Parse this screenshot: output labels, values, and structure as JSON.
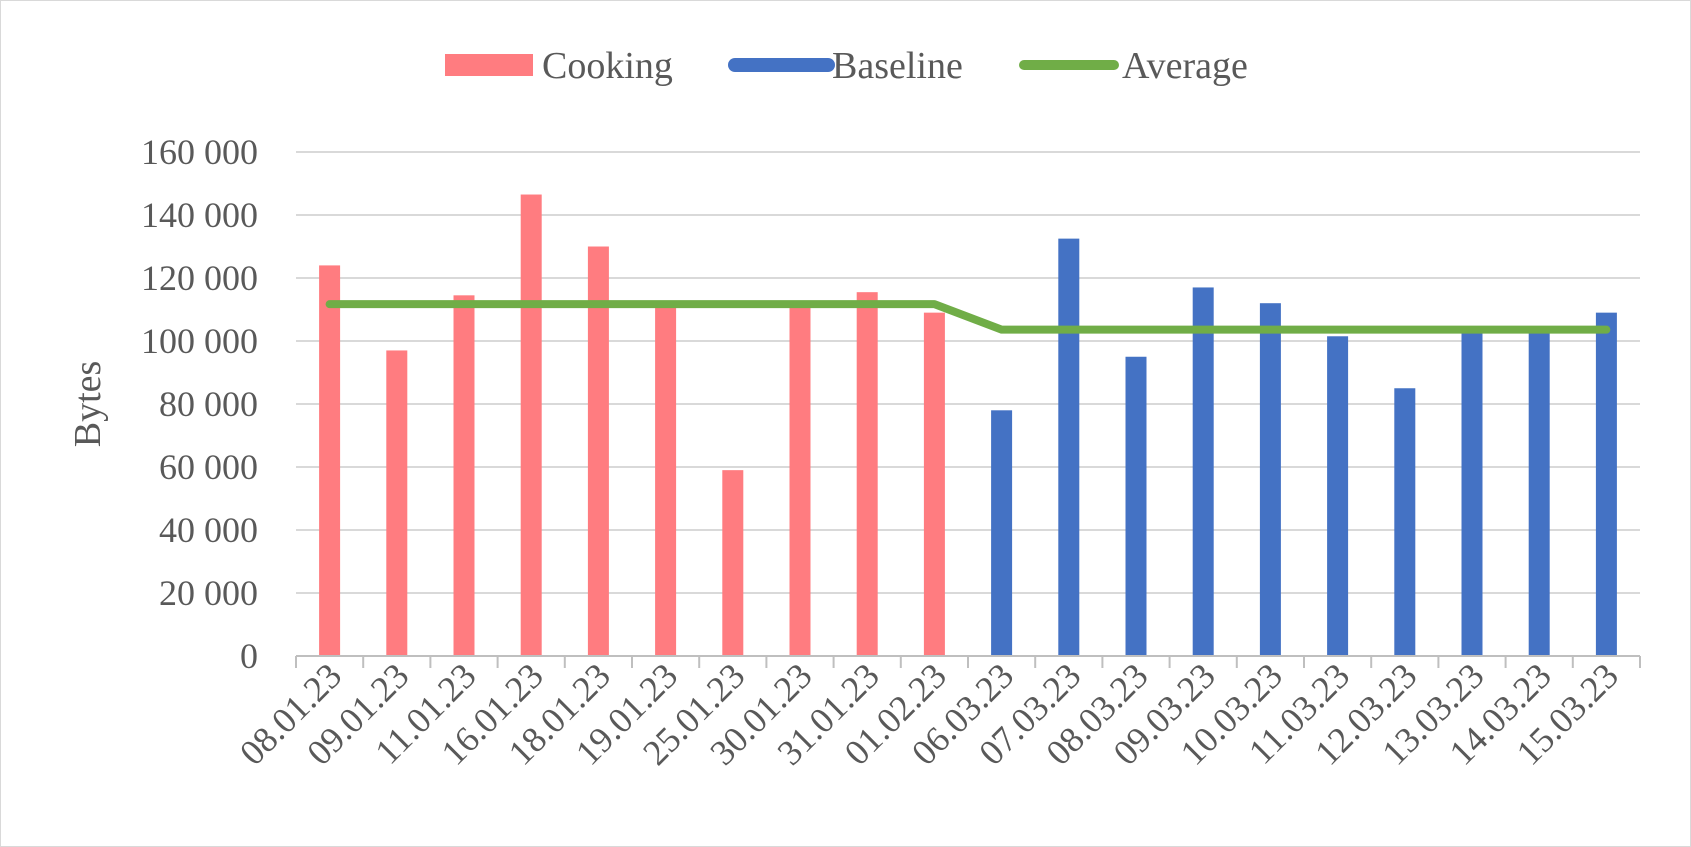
{
  "chart_data": {
    "type": "bar",
    "ylabel": "Bytes",
    "xlabel": "",
    "ylim": [
      0,
      160000
    ],
    "yticks": [
      0,
      20000,
      40000,
      60000,
      80000,
      100000,
      120000,
      140000,
      160000
    ],
    "ytick_labels": [
      "0",
      "20 000",
      "40 000",
      "60 000",
      "80 000",
      "100 000",
      "120 000",
      "140 000",
      "160 000"
    ],
    "grid": true,
    "legend_position": "top",
    "categories": [
      "08.01.23",
      "09.01.23",
      "11.01.23",
      "16.01.23",
      "18.01.23",
      "19.01.23",
      "25.01.23",
      "30.01.23",
      "31.01.23",
      "01.02.23",
      "06.03.23",
      "07.03.23",
      "08.03.23",
      "09.03.23",
      "10.03.23",
      "11.03.23",
      "12.03.23",
      "13.03.23",
      "14.03.23",
      "15.03.23"
    ],
    "series": [
      {
        "name": "Cooking",
        "kind": "bar",
        "color": "#ff7c80",
        "values": [
          124000,
          97000,
          114500,
          146500,
          130000,
          111500,
          59000,
          111500,
          115500,
          109000,
          null,
          null,
          null,
          null,
          null,
          null,
          null,
          null,
          null,
          null
        ]
      },
      {
        "name": "Baseline",
        "kind": "bar",
        "color": "#4472c4",
        "values": [
          null,
          null,
          null,
          null,
          null,
          null,
          null,
          null,
          null,
          null,
          78000,
          132500,
          95000,
          117000,
          112000,
          101500,
          85000,
          103000,
          103000,
          109000
        ]
      },
      {
        "name": "Average",
        "kind": "line",
        "color": "#70ad47",
        "values": [
          111700,
          111700,
          111700,
          111700,
          111700,
          111700,
          111700,
          111700,
          111700,
          111700,
          103600,
          103600,
          103600,
          103600,
          103600,
          103600,
          103600,
          103600,
          103600,
          103600
        ]
      }
    ]
  }
}
